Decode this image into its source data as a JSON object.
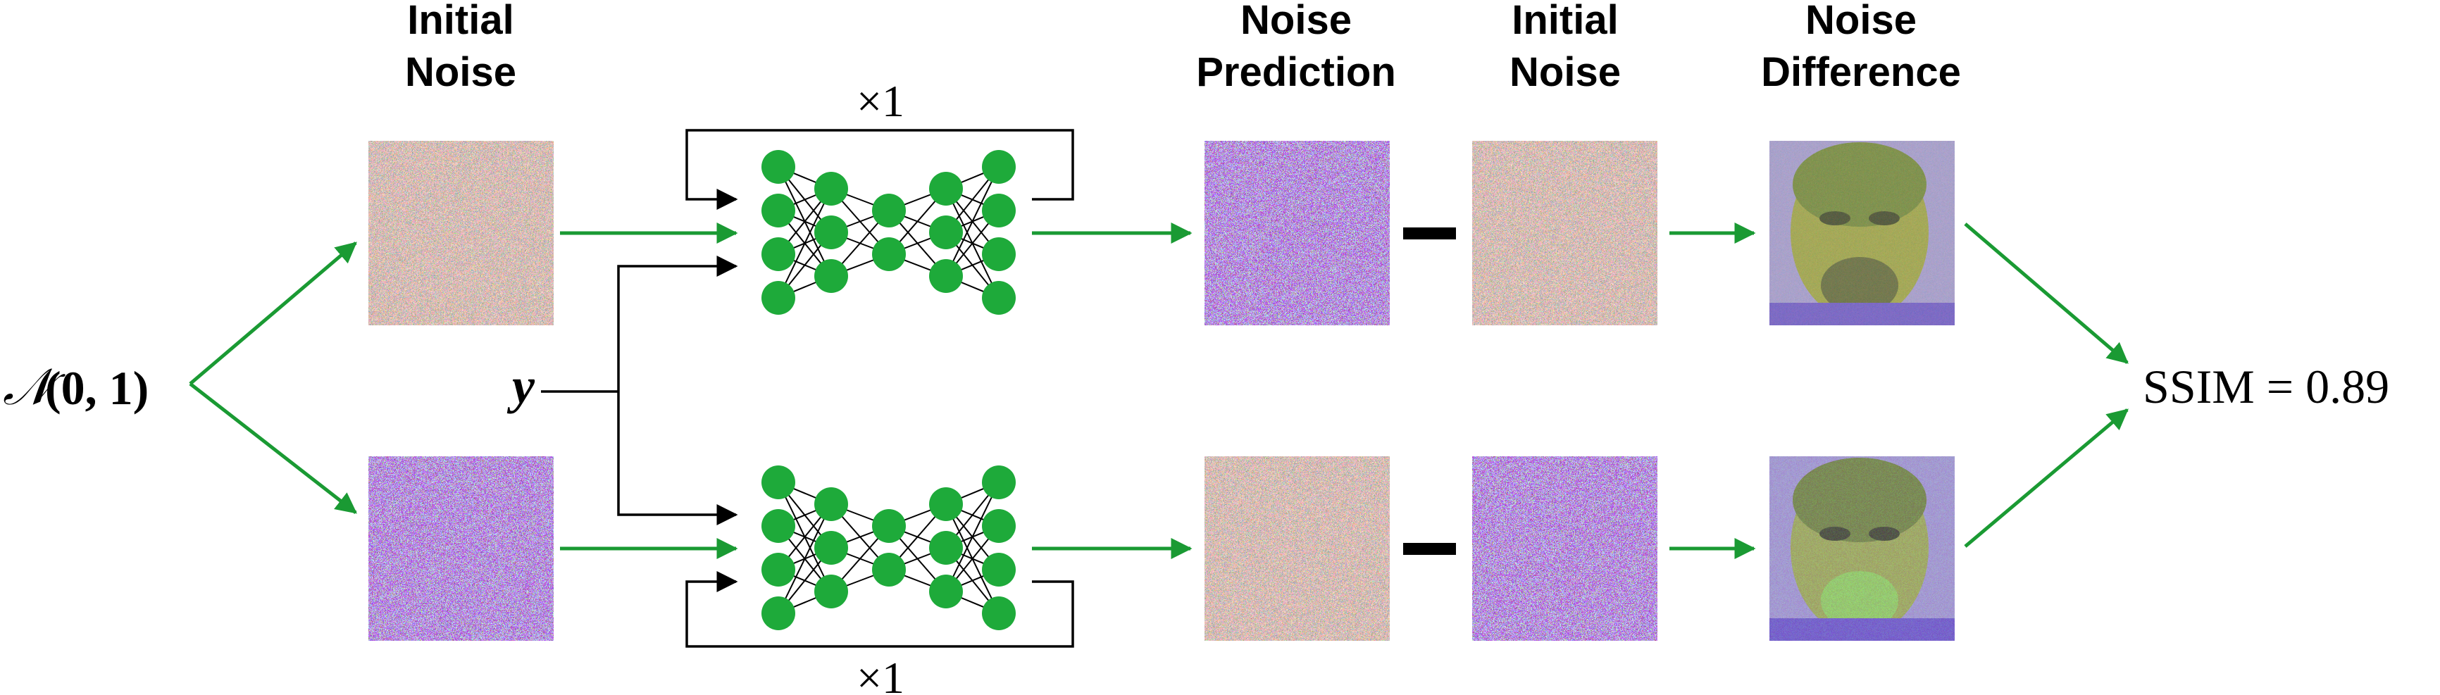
{
  "headers": {
    "initial_noise_left": [
      "Initial",
      "Noise"
    ],
    "noise_prediction": [
      "Noise",
      "Prediction"
    ],
    "initial_noise_right": [
      "Initial",
      "Noise"
    ],
    "noise_difference": [
      "Noise",
      "Difference"
    ]
  },
  "input": {
    "dist_symbol": "𝒩",
    "dist_params": "(0, 1)",
    "condition": "y"
  },
  "loops": {
    "top": "×1",
    "bottom": "×1"
  },
  "operators": {
    "minus_top": "−",
    "minus_bottom": "−"
  },
  "result": "SSIM = 0.89",
  "colors": {
    "node_green": "#1eaa3a",
    "arrow_green": "#1a9a33",
    "face_yellow": "#b8c04a",
    "face_purple": "#8a7fd0"
  },
  "icons": {
    "noise_image": "random-rgb-noise-square",
    "difference_image": "face-silhouette-noise-difference",
    "network": "encoder-decoder-neural-network"
  }
}
